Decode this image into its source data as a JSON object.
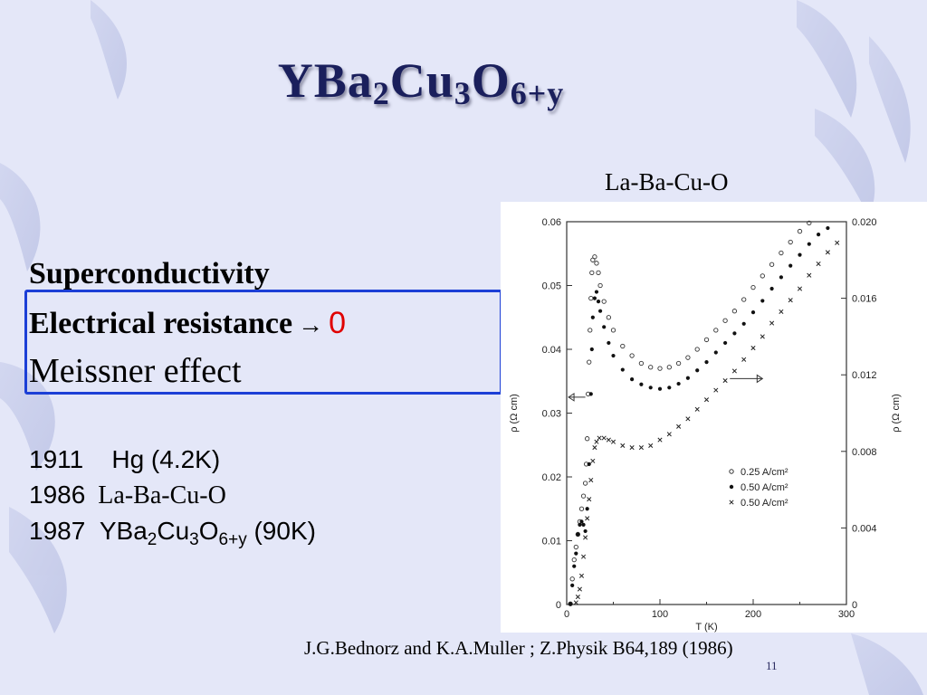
{
  "slide": {
    "title_main": "YBa",
    "title_sub1": "2",
    "title_mid": "Cu",
    "title_sub2": "3",
    "title_end": "O",
    "title_sub3": "6+y",
    "chart_caption": "La-Ba-Cu-O",
    "concepts": {
      "line1": "Superconductivity",
      "line2": "Electrical resistance",
      "arrow": "→",
      "zero": "0",
      "line3": "Meissner effect"
    },
    "timeline": [
      {
        "year": "1911",
        "label": "Hg (4.2K)"
      },
      {
        "year": "1986",
        "label": "La-Ba-Cu-O"
      },
      {
        "year": "1987",
        "label_a": "YBa",
        "sub_a": "2",
        "label_b": "Cu",
        "sub_b": "3",
        "label_c": "O",
        "sub_c": "6+y",
        "label_d": " (90K)"
      }
    ],
    "reference": "J.G.Bednorz and K.A.Muller ;  Z.Physik B64,189 (1986)",
    "page_number": "11",
    "colors": {
      "title": "#1a1f5c",
      "box_border": "#1c3fd6",
      "zero": "#e00000",
      "background": "#e4e7f8"
    }
  },
  "chart_data": {
    "type": "scatter",
    "xlabel": "T (K)",
    "ylabel_left": "ρ (Ω cm)",
    "ylabel_right": "ρ (Ω cm)",
    "xlim": [
      0,
      300
    ],
    "ylim_left": [
      0,
      0.06
    ],
    "ylim_right": [
      0,
      0.02
    ],
    "x_ticks": [
      "0",
      "100",
      "200",
      "300"
    ],
    "y_ticks_left": [
      "0",
      "0.01",
      "0.02",
      "0.03",
      "0.04",
      "0.05",
      "0.06"
    ],
    "y_ticks_right": [
      "0",
      "0.004",
      "0.008",
      "0.012",
      "0.016",
      "0.020"
    ],
    "series": [
      {
        "name": "0.25 A/cm²",
        "marker": "open-circle",
        "axis": "left",
        "points": [
          [
            4,
            0.0001
          ],
          [
            6,
            0.004
          ],
          [
            8,
            0.007
          ],
          [
            10,
            0.009
          ],
          [
            12,
            0.011
          ],
          [
            14,
            0.013
          ],
          [
            16,
            0.015
          ],
          [
            18,
            0.017
          ],
          [
            20,
            0.019
          ],
          [
            21,
            0.022
          ],
          [
            22,
            0.026
          ],
          [
            23,
            0.033
          ],
          [
            24,
            0.038
          ],
          [
            25,
            0.043
          ],
          [
            26,
            0.048
          ],
          [
            27,
            0.052
          ],
          [
            28,
            0.054
          ],
          [
            30,
            0.0545
          ],
          [
            32,
            0.0535
          ],
          [
            34,
            0.052
          ],
          [
            36,
            0.05
          ],
          [
            40,
            0.0475
          ],
          [
            45,
            0.045
          ],
          [
            50,
            0.043
          ],
          [
            60,
            0.0405
          ],
          [
            70,
            0.039
          ],
          [
            80,
            0.0378
          ],
          [
            90,
            0.0372
          ],
          [
            100,
            0.037
          ],
          [
            110,
            0.0372
          ],
          [
            120,
            0.0378
          ],
          [
            130,
            0.0387
          ],
          [
            140,
            0.04
          ],
          [
            150,
            0.0415
          ],
          [
            160,
            0.043
          ],
          [
            170,
            0.0445
          ],
          [
            180,
            0.046
          ],
          [
            190,
            0.0478
          ],
          [
            200,
            0.0497
          ],
          [
            210,
            0.0515
          ],
          [
            220,
            0.0533
          ],
          [
            230,
            0.0551
          ],
          [
            240,
            0.0568
          ],
          [
            250,
            0.0585
          ],
          [
            260,
            0.0598
          ]
        ]
      },
      {
        "name": "0.50 A/cm²",
        "marker": "filled-circle",
        "axis": "left",
        "points": [
          [
            4,
            0.0001
          ],
          [
            6,
            0.003
          ],
          [
            8,
            0.006
          ],
          [
            10,
            0.008
          ],
          [
            12,
            0.011
          ],
          [
            14,
            0.0125
          ],
          [
            16,
            0.013
          ],
          [
            18,
            0.0125
          ],
          [
            20,
            0.0115
          ],
          [
            22,
            0.015
          ],
          [
            24,
            0.022
          ],
          [
            26,
            0.033
          ],
          [
            27,
            0.04
          ],
          [
            28,
            0.045
          ],
          [
            30,
            0.048
          ],
          [
            32,
            0.049
          ],
          [
            34,
            0.0475
          ],
          [
            36,
            0.046
          ],
          [
            40,
            0.0435
          ],
          [
            45,
            0.041
          ],
          [
            50,
            0.039
          ],
          [
            60,
            0.0368
          ],
          [
            70,
            0.0353
          ],
          [
            80,
            0.0345
          ],
          [
            90,
            0.034
          ],
          [
            100,
            0.0338
          ],
          [
            110,
            0.034
          ],
          [
            120,
            0.0346
          ],
          [
            130,
            0.0355
          ],
          [
            140,
            0.0367
          ],
          [
            150,
            0.038
          ],
          [
            160,
            0.0395
          ],
          [
            170,
            0.041
          ],
          [
            180,
            0.0425
          ],
          [
            190,
            0.044
          ],
          [
            200,
            0.0458
          ],
          [
            210,
            0.0476
          ],
          [
            220,
            0.0495
          ],
          [
            230,
            0.0513
          ],
          [
            240,
            0.0531
          ],
          [
            250,
            0.0548
          ],
          [
            260,
            0.0565
          ],
          [
            270,
            0.058
          ],
          [
            280,
            0.059
          ]
        ]
      },
      {
        "name": "0.50 A/cm²",
        "marker": "cross",
        "axis": "right",
        "points": [
          [
            10,
            0.0001
          ],
          [
            12,
            0.0004
          ],
          [
            14,
            0.0008
          ],
          [
            16,
            0.0015
          ],
          [
            18,
            0.0025
          ],
          [
            20,
            0.0035
          ],
          [
            22,
            0.0045
          ],
          [
            24,
            0.0055
          ],
          [
            26,
            0.0065
          ],
          [
            28,
            0.0075
          ],
          [
            30,
            0.0082
          ],
          [
            32,
            0.0085
          ],
          [
            35,
            0.0087
          ],
          [
            40,
            0.0087
          ],
          [
            45,
            0.0086
          ],
          [
            50,
            0.0085
          ],
          [
            60,
            0.0083
          ],
          [
            70,
            0.0082
          ],
          [
            80,
            0.0082
          ],
          [
            90,
            0.0083
          ],
          [
            100,
            0.0086
          ],
          [
            110,
            0.0089
          ],
          [
            120,
            0.0093
          ],
          [
            130,
            0.0097
          ],
          [
            140,
            0.0102
          ],
          [
            150,
            0.0107
          ],
          [
            160,
            0.0112
          ],
          [
            170,
            0.0117
          ],
          [
            180,
            0.0122
          ],
          [
            190,
            0.0128
          ],
          [
            200,
            0.0134
          ],
          [
            210,
            0.014
          ],
          [
            220,
            0.0147
          ],
          [
            230,
            0.0153
          ],
          [
            240,
            0.0159
          ],
          [
            250,
            0.0165
          ],
          [
            260,
            0.0172
          ],
          [
            270,
            0.0178
          ],
          [
            280,
            0.0184
          ],
          [
            290,
            0.0189
          ]
        ]
      }
    ]
  }
}
